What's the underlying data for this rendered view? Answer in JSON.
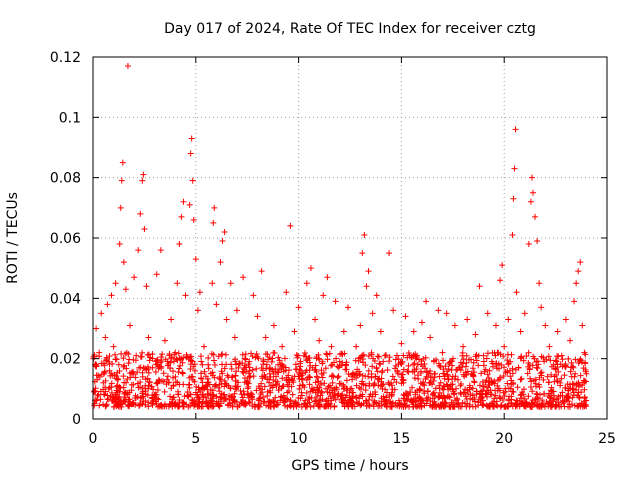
{
  "chart_data": {
    "type": "scatter",
    "title": "Day 017 of 2024, Rate Of TEC Index for receiver cztg",
    "xlabel": "GPS time / hours",
    "ylabel": "ROTI / TECUs",
    "xlim": [
      0,
      25
    ],
    "ylim": [
      0,
      0.12
    ],
    "x_ticks": [
      0,
      5,
      10,
      15,
      20,
      25
    ],
    "x_tick_labels": [
      "0",
      "5",
      "10",
      "15",
      "20",
      "25"
    ],
    "y_ticks": [
      0,
      0.02,
      0.04,
      0.06,
      0.08,
      0.1,
      0.12
    ],
    "y_tick_labels": [
      "0",
      "0.02",
      "0.04",
      "0.06",
      "0.08",
      "0.1",
      "0.12"
    ],
    "grid": true,
    "marker": "+",
    "marker_color": "#ff0000",
    "series": [
      {
        "name": "ROTI",
        "points": [
          [
            0.05,
            0.009
          ],
          [
            0.1,
            0.018
          ],
          [
            0.15,
            0.03
          ],
          [
            0.2,
            0.013
          ],
          [
            0.3,
            0.022
          ],
          [
            0.4,
            0.035
          ],
          [
            0.5,
            0.012
          ],
          [
            0.6,
            0.027
          ],
          [
            0.7,
            0.038
          ],
          [
            0.8,
            0.016
          ],
          [
            0.9,
            0.041
          ],
          [
            1.0,
            0.024
          ],
          [
            1.1,
            0.045
          ],
          [
            1.2,
            0.013
          ],
          [
            1.3,
            0.058
          ],
          [
            1.35,
            0.07
          ],
          [
            1.4,
            0.079
          ],
          [
            1.45,
            0.085
          ],
          [
            1.5,
            0.052
          ],
          [
            1.6,
            0.043
          ],
          [
            1.7,
            0.117
          ],
          [
            1.8,
            0.031
          ],
          [
            1.9,
            0.015
          ],
          [
            2.0,
            0.047
          ],
          [
            2.1,
            0.021
          ],
          [
            2.2,
            0.056
          ],
          [
            2.3,
            0.068
          ],
          [
            2.4,
            0.079
          ],
          [
            2.45,
            0.081
          ],
          [
            2.5,
            0.063
          ],
          [
            2.6,
            0.044
          ],
          [
            2.7,
            0.027
          ],
          [
            2.9,
            0.017
          ],
          [
            3.1,
            0.048
          ],
          [
            3.3,
            0.056
          ],
          [
            3.5,
            0.026
          ],
          [
            3.6,
            0.013
          ],
          [
            3.8,
            0.033
          ],
          [
            4.0,
            0.022
          ],
          [
            4.1,
            0.045
          ],
          [
            4.2,
            0.058
          ],
          [
            4.3,
            0.067
          ],
          [
            4.4,
            0.072
          ],
          [
            4.5,
            0.041
          ],
          [
            4.7,
            0.071
          ],
          [
            4.75,
            0.088
          ],
          [
            4.8,
            0.093
          ],
          [
            4.85,
            0.079
          ],
          [
            4.9,
            0.066
          ],
          [
            5.0,
            0.053
          ],
          [
            5.1,
            0.036
          ],
          [
            5.2,
            0.042
          ],
          [
            5.4,
            0.024
          ],
          [
            5.6,
            0.018
          ],
          [
            5.8,
            0.045
          ],
          [
            5.85,
            0.065
          ],
          [
            5.9,
            0.07
          ],
          [
            6.0,
            0.038
          ],
          [
            6.2,
            0.052
          ],
          [
            6.3,
            0.059
          ],
          [
            6.4,
            0.062
          ],
          [
            6.5,
            0.033
          ],
          [
            6.7,
            0.045
          ],
          [
            6.9,
            0.027
          ],
          [
            7.0,
            0.036
          ],
          [
            7.3,
            0.047
          ],
          [
            7.6,
            0.019
          ],
          [
            7.8,
            0.041
          ],
          [
            8.0,
            0.034
          ],
          [
            8.2,
            0.049
          ],
          [
            8.4,
            0.027
          ],
          [
            8.6,
            0.015
          ],
          [
            8.8,
            0.031
          ],
          [
            9.0,
            0.018
          ],
          [
            9.2,
            0.024
          ],
          [
            9.4,
            0.042
          ],
          [
            9.6,
            0.064
          ],
          [
            9.8,
            0.029
          ],
          [
            10.0,
            0.037
          ],
          [
            10.2,
            0.015
          ],
          [
            10.4,
            0.045
          ],
          [
            10.6,
            0.05
          ],
          [
            10.8,
            0.033
          ],
          [
            11.0,
            0.026
          ],
          [
            11.2,
            0.041
          ],
          [
            11.4,
            0.047
          ],
          [
            11.6,
            0.024
          ],
          [
            11.8,
            0.039
          ],
          [
            12.0,
            0.019
          ],
          [
            12.2,
            0.029
          ],
          [
            12.4,
            0.037
          ],
          [
            12.6,
            0.014
          ],
          [
            12.8,
            0.024
          ],
          [
            13.0,
            0.031
          ],
          [
            13.1,
            0.055
          ],
          [
            13.2,
            0.061
          ],
          [
            13.3,
            0.044
          ],
          [
            13.4,
            0.049
          ],
          [
            13.6,
            0.035
          ],
          [
            13.8,
            0.041
          ],
          [
            14.0,
            0.029
          ],
          [
            14.2,
            0.021
          ],
          [
            14.4,
            0.055
          ],
          [
            14.6,
            0.036
          ],
          [
            14.8,
            0.016
          ],
          [
            15.0,
            0.025
          ],
          [
            15.2,
            0.034
          ],
          [
            15.4,
            0.021
          ],
          [
            15.6,
            0.029
          ],
          [
            15.8,
            0.018
          ],
          [
            16.0,
            0.032
          ],
          [
            16.2,
            0.039
          ],
          [
            16.4,
            0.027
          ],
          [
            16.6,
            0.015
          ],
          [
            16.8,
            0.036
          ],
          [
            17.0,
            0.022
          ],
          [
            17.2,
            0.035
          ],
          [
            17.4,
            0.019
          ],
          [
            17.6,
            0.031
          ],
          [
            17.8,
            0.017
          ],
          [
            18.0,
            0.024
          ],
          [
            18.2,
            0.033
          ],
          [
            18.4,
            0.015
          ],
          [
            18.6,
            0.028
          ],
          [
            18.8,
            0.044
          ],
          [
            19.0,
            0.021
          ],
          [
            19.2,
            0.035
          ],
          [
            19.4,
            0.019
          ],
          [
            19.6,
            0.031
          ],
          [
            19.8,
            0.046
          ],
          [
            19.9,
            0.051
          ],
          [
            20.0,
            0.024
          ],
          [
            20.2,
            0.033
          ],
          [
            20.4,
            0.061
          ],
          [
            20.45,
            0.073
          ],
          [
            20.5,
            0.083
          ],
          [
            20.55,
            0.096
          ],
          [
            20.6,
            0.042
          ],
          [
            20.8,
            0.029
          ],
          [
            21.0,
            0.035
          ],
          [
            21.2,
            0.058
          ],
          [
            21.3,
            0.072
          ],
          [
            21.35,
            0.08
          ],
          [
            21.4,
            0.075
          ],
          [
            21.5,
            0.067
          ],
          [
            21.6,
            0.059
          ],
          [
            21.7,
            0.045
          ],
          [
            21.8,
            0.037
          ],
          [
            22.0,
            0.031
          ],
          [
            22.2,
            0.024
          ],
          [
            22.4,
            0.018
          ],
          [
            22.6,
            0.029
          ],
          [
            22.8,
            0.021
          ],
          [
            23.0,
            0.033
          ],
          [
            23.2,
            0.026
          ],
          [
            23.4,
            0.039
          ],
          [
            23.5,
            0.045
          ],
          [
            23.6,
            0.049
          ],
          [
            23.7,
            0.052
          ],
          [
            23.8,
            0.031
          ],
          [
            23.9,
            0.022
          ],
          [
            24.0,
            0.015
          ]
        ]
      }
    ],
    "dense_band": {
      "x_range": [
        0,
        24
      ],
      "y_range": [
        0.004,
        0.022
      ],
      "point_count": 1900
    }
  }
}
